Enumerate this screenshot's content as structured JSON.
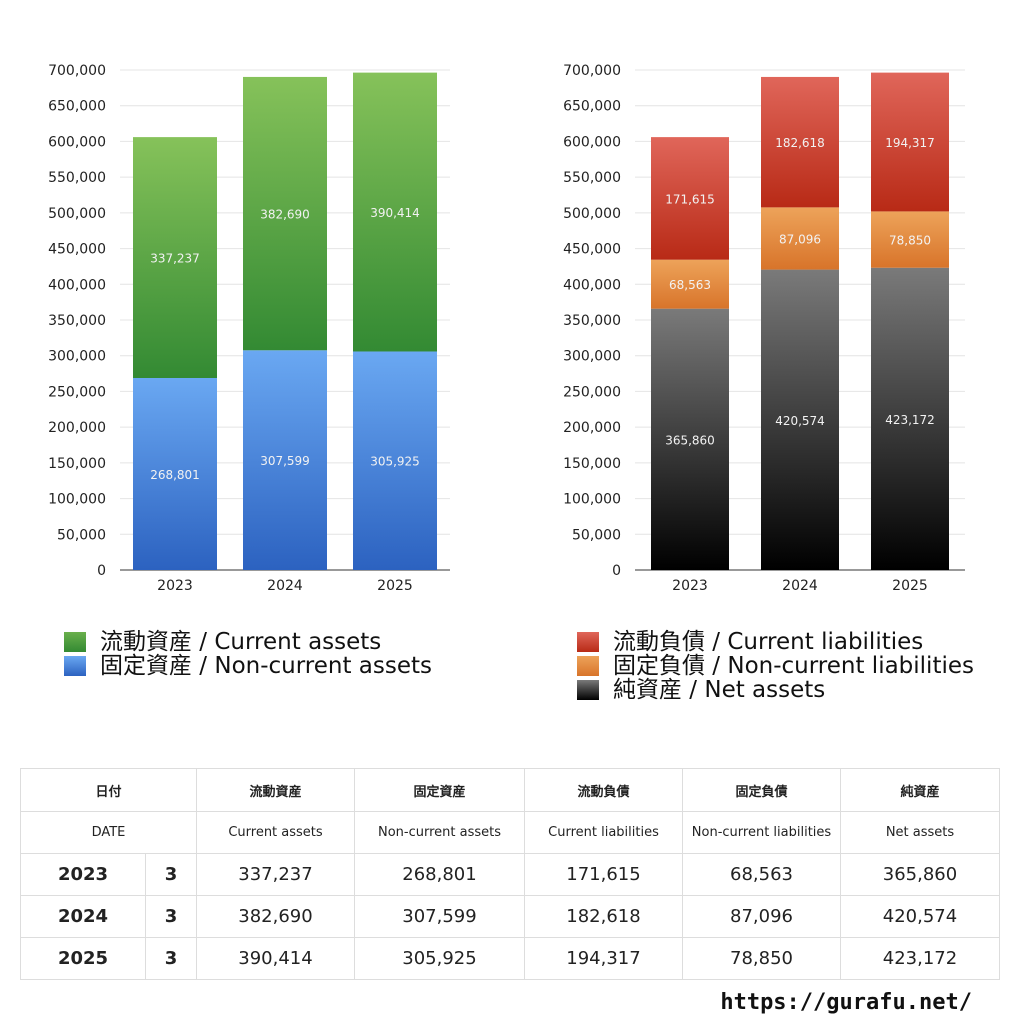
{
  "chart_data": [
    {
      "type": "bar",
      "stacked": true,
      "categories": [
        "2023",
        "2024",
        "2025"
      ],
      "ylim": [
        0,
        700000
      ],
      "yticks": [
        0,
        50000,
        100000,
        150000,
        200000,
        250000,
        300000,
        350000,
        400000,
        450000,
        500000,
        550000,
        600000,
        650000,
        700000
      ],
      "grid": true,
      "series": [
        {
          "name": "固定資産 / Non-current assets",
          "values": [
            268801,
            307599,
            305925
          ],
          "color_top": "#6aa8f2",
          "color_bottom": "#2c62c0"
        },
        {
          "name": "流動資産 / Current assets",
          "values": [
            337237,
            382690,
            390414
          ],
          "color_top": "#86c25a",
          "color_bottom": "#338a33"
        }
      ],
      "legend_position": "bottom"
    },
    {
      "type": "bar",
      "stacked": true,
      "categories": [
        "2023",
        "2024",
        "2025"
      ],
      "ylim": [
        0,
        700000
      ],
      "yticks": [
        0,
        50000,
        100000,
        150000,
        200000,
        250000,
        300000,
        350000,
        400000,
        450000,
        500000,
        550000,
        600000,
        650000,
        700000
      ],
      "grid": true,
      "series": [
        {
          "name": "純資産 / Net assets",
          "values": [
            365860,
            420574,
            423172
          ],
          "color_top": "#7a7a7a",
          "color_bottom": "#000000"
        },
        {
          "name": "固定負債 / Non-current liabilities",
          "values": [
            68563,
            87096,
            78850
          ],
          "color_top": "#eda35a",
          "color_bottom": "#d8742a"
        },
        {
          "name": "流動負債 / Current liabilities",
          "values": [
            171615,
            182618,
            194317
          ],
          "color_top": "#e0665a",
          "color_bottom": "#b82a16"
        }
      ],
      "legend_position": "bottom"
    }
  ],
  "legends": {
    "left": [
      {
        "label": "流動資産 / Current assets",
        "color": "#4c9e3c"
      },
      {
        "label": "固定資産 / Non-current assets",
        "color": "#4a86dd"
      }
    ],
    "right": [
      {
        "label": "流動負債 / Current liabilities",
        "color": "#d0402e"
      },
      {
        "label": "固定負債 / Non-current liabilities",
        "color": "#e58a38"
      },
      {
        "label": "純資産 / Net assets",
        "color": "#333333"
      }
    ]
  },
  "table": {
    "header_jp": [
      "日付",
      "流動資産",
      "固定資産",
      "流動負債",
      "固定負債",
      "純資産"
    ],
    "header_en": [
      "DATE",
      "Current assets",
      "Non-current assets",
      "Current liabilities",
      "Non-current liabilities",
      "Net assets"
    ],
    "rows": [
      {
        "year": "2023",
        "month": "3",
        "values": [
          "337,237",
          "268,801",
          "171,615",
          "68,563",
          "365,860"
        ]
      },
      {
        "year": "2024",
        "month": "3",
        "values": [
          "382,690",
          "307,599",
          "182,618",
          "87,096",
          "420,574"
        ]
      },
      {
        "year": "2025",
        "month": "3",
        "values": [
          "390,414",
          "305,925",
          "194,317",
          "78,850",
          "423,172"
        ]
      }
    ]
  },
  "footer": {
    "url": "https://gurafu.net/"
  }
}
